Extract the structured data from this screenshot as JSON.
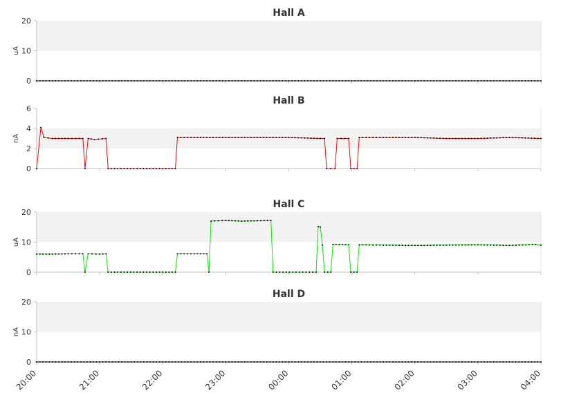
{
  "chart_data": [
    {
      "type": "line",
      "title": "Hall A",
      "xlabel": "",
      "ylabel": "uA",
      "ylim": [
        0,
        20
      ],
      "yticks": [
        0,
        10,
        20
      ],
      "band": [
        10,
        20
      ],
      "grid": false,
      "color": "#000000",
      "series": [
        {
          "points": [
            [
              "20:00",
              0
            ],
            [
              "21:00",
              0
            ],
            [
              "22:00",
              0
            ],
            [
              "23:00",
              0
            ],
            [
              "00:00",
              0
            ],
            [
              "01:00",
              0
            ],
            [
              "02:00",
              0
            ],
            [
              "03:00",
              0
            ],
            [
              "04:00",
              0
            ]
          ]
        }
      ]
    },
    {
      "type": "line",
      "title": "Hall B",
      "xlabel": "",
      "ylabel": "nA",
      "ylim": [
        0,
        6
      ],
      "yticks": [
        0,
        2,
        4,
        6
      ],
      "band": [
        2,
        4
      ],
      "grid": false,
      "color": "#ff0000",
      "series": [
        {
          "points": [
            [
              "20:00",
              0
            ],
            [
              "20:04",
              4.1
            ],
            [
              "20:07",
              3.1
            ],
            [
              "20:15",
              3.0
            ],
            [
              "20:30",
              3.0
            ],
            [
              "20:44",
              3.0
            ],
            [
              "20:46",
              0
            ],
            [
              "20:49",
              3.0
            ],
            [
              "20:55",
              2.9
            ],
            [
              "21:06",
              3.0
            ],
            [
              "21:08",
              0
            ],
            [
              "22:00",
              0
            ],
            [
              "22:12",
              0
            ],
            [
              "22:14",
              3.1
            ],
            [
              "22:30",
              3.1
            ],
            [
              "23:00",
              3.1
            ],
            [
              "23:30",
              3.1
            ],
            [
              "00:00",
              3.1
            ],
            [
              "00:30",
              3.0
            ],
            [
              "00:34",
              3.0
            ],
            [
              "00:36",
              0
            ],
            [
              "00:44",
              0
            ],
            [
              "00:46",
              3.0
            ],
            [
              "00:57",
              3.0
            ],
            [
              "00:59",
              0
            ],
            [
              "01:05",
              0
            ],
            [
              "01:07",
              3.1
            ],
            [
              "01:30",
              3.1
            ],
            [
              "02:00",
              3.1
            ],
            [
              "02:30",
              3.0
            ],
            [
              "03:00",
              3.0
            ],
            [
              "03:30",
              3.1
            ],
            [
              "04:00",
              3.0
            ]
          ]
        }
      ]
    },
    {
      "type": "line",
      "title": "Hall C",
      "xlabel": "",
      "ylabel": "uA",
      "ylim": [
        0,
        20
      ],
      "yticks": [
        0,
        10,
        20
      ],
      "band": [
        10,
        20
      ],
      "grid": false,
      "color": "#00ee00",
      "series": [
        {
          "points": [
            [
              "20:00",
              6.0
            ],
            [
              "20:15",
              6.0
            ],
            [
              "20:30",
              6.1
            ],
            [
              "20:44",
              6.1
            ],
            [
              "20:46",
              0
            ],
            [
              "20:49",
              6.1
            ],
            [
              "21:00",
              6.0
            ],
            [
              "21:06",
              6.1
            ],
            [
              "21:08",
              0
            ],
            [
              "22:00",
              0
            ],
            [
              "22:12",
              0
            ],
            [
              "22:14",
              6.1
            ],
            [
              "22:30",
              6.1
            ],
            [
              "22:42",
              6.1
            ],
            [
              "22:44",
              0
            ],
            [
              "22:46",
              17.0
            ],
            [
              "23:00",
              17.2
            ],
            [
              "23:15",
              17.0
            ],
            [
              "23:30",
              17.1
            ],
            [
              "23:43",
              17.2
            ],
            [
              "23:45",
              0
            ],
            [
              "00:10",
              0
            ],
            [
              "00:26",
              0
            ],
            [
              "00:28",
              15.2
            ],
            [
              "00:30",
              15.0
            ],
            [
              "00:32",
              9.0
            ],
            [
              "00:34",
              0
            ],
            [
              "00:40",
              0
            ],
            [
              "00:42",
              9.2
            ],
            [
              "00:57",
              9.1
            ],
            [
              "00:59",
              0
            ],
            [
              "01:05",
              0
            ],
            [
              "01:07",
              9.1
            ],
            [
              "01:30",
              9.0
            ],
            [
              "02:00",
              8.9
            ],
            [
              "02:30",
              9.0
            ],
            [
              "03:00",
              9.1
            ],
            [
              "03:30",
              8.9
            ],
            [
              "03:55",
              9.2
            ],
            [
              "04:00",
              9.0
            ]
          ]
        }
      ]
    },
    {
      "type": "line",
      "title": "Hall D",
      "xlabel": "",
      "ylabel": "nA",
      "ylim": [
        0,
        20
      ],
      "yticks": [
        0,
        10,
        20
      ],
      "band": [
        10,
        20
      ],
      "grid": false,
      "color": "#000000",
      "series": [
        {
          "points": [
            [
              "20:00",
              0
            ],
            [
              "21:00",
              0
            ],
            [
              "22:00",
              0
            ],
            [
              "23:00",
              0
            ],
            [
              "00:00",
              0
            ],
            [
              "01:00",
              0
            ],
            [
              "02:00",
              0
            ],
            [
              "03:00",
              0
            ],
            [
              "04:00",
              0
            ]
          ]
        }
      ]
    }
  ],
  "x_axis": {
    "tick_labels": [
      "20:00",
      "21:00",
      "22:00",
      "23:00",
      "00:00",
      "01:00",
      "02:00",
      "03:00",
      "04:00"
    ],
    "range": [
      "20:00",
      "04:00"
    ]
  },
  "colors": {
    "band": "#f2f2f2",
    "axis": "#c0c0c0",
    "marker": "#000000"
  }
}
